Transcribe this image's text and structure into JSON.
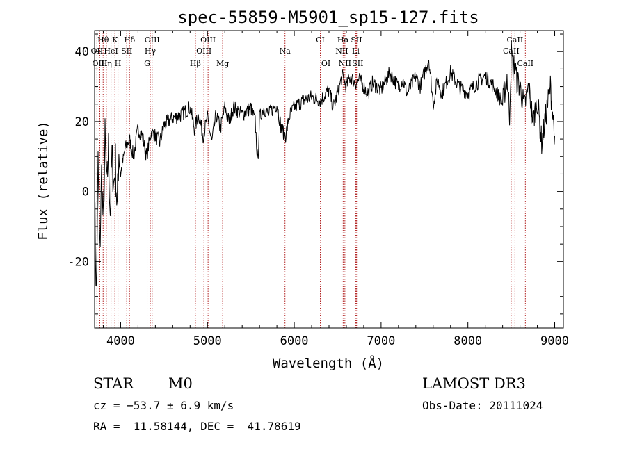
{
  "chart_data": {
    "type": "line",
    "title": "spec-55859-M5901_sp15-127.fits",
    "xlabel": "Wavelength (Å)",
    "ylabel": "Flux (relative)",
    "xlim": [
      3700,
      9100
    ],
    "ylim": [
      -39,
      46
    ],
    "x_ticks": [
      4000,
      5000,
      6000,
      7000,
      8000,
      9000
    ],
    "y_ticks": [
      -20,
      0,
      20,
      40
    ],
    "grid": false,
    "series": [
      {
        "x": [
          3700,
          3720,
          3740,
          3760,
          3780,
          3800,
          3820,
          3840,
          3860,
          3880,
          3900,
          3920,
          3940,
          3960,
          3980,
          4000,
          4050,
          4100,
          4150,
          4200,
          4250,
          4300,
          4350,
          4400,
          4450,
          4500,
          4600,
          4700,
          4800,
          4850,
          4900,
          4950,
          5000,
          5050,
          5100,
          5150,
          5200,
          5250,
          5300,
          5400,
          5500,
          5550,
          5580,
          5600,
          5650,
          5700,
          5800,
          5850,
          5900,
          5950,
          6000,
          6100,
          6200,
          6300,
          6400,
          6450,
          6500,
          6550,
          6600,
          6650,
          6700,
          6750,
          6800,
          6850,
          6900,
          7000,
          7100,
          7200,
          7250,
          7300,
          7400,
          7450,
          7500,
          7550,
          7600,
          7650,
          7700,
          7800,
          7900,
          8000,
          8100,
          8200,
          8300,
          8400,
          8450,
          8480,
          8500,
          8520,
          8540,
          8560,
          8600,
          8650,
          8700,
          8750,
          8800,
          8850,
          8900,
          8950,
          9000
        ],
        "y": [
          -2,
          -30,
          8,
          -18,
          5,
          -10,
          15,
          0,
          12,
          -6,
          10,
          2,
          8,
          -5,
          12,
          5,
          12,
          15,
          10,
          18,
          16,
          10,
          17,
          16,
          14,
          19,
          21,
          22,
          24,
          18,
          22,
          16,
          21,
          14,
          22,
          18,
          24,
          20,
          24,
          22,
          24,
          20,
          8,
          21,
          24,
          22,
          25,
          18,
          16,
          22,
          24,
          26,
          27,
          26,
          29,
          24,
          28,
          33,
          30,
          33,
          31,
          32,
          30,
          28,
          31,
          29,
          34,
          30,
          32,
          28,
          33,
          30,
          34,
          38,
          25,
          32,
          28,
          34,
          30,
          28,
          31,
          33,
          30,
          25,
          33,
          22,
          40,
          35,
          37,
          32,
          30,
          24,
          30,
          20,
          26,
          14,
          22,
          30,
          16
        ]
      }
    ],
    "lines": [
      {
        "label": "Hθ",
        "x": 3798,
        "row": 0
      },
      {
        "label": "OII",
        "x": 3727,
        "row": 1
      },
      {
        "label": "OIII",
        "x": 3760,
        "row": 2
      },
      {
        "label": "Hη",
        "x": 3835,
        "row": 2
      },
      {
        "label": "HeI",
        "x": 3889,
        "row": 1
      },
      {
        "label": "K",
        "x": 3934,
        "row": 0
      },
      {
        "label": "H",
        "x": 3969,
        "row": 2
      },
      {
        "label": "SII",
        "x": 4070,
        "row": 1
      },
      {
        "label": "Hδ",
        "x": 4102,
        "row": 0
      },
      {
        "label": "OIII",
        "x": 4363,
        "row": 0
      },
      {
        "label": "Hγ",
        "x": 4341,
        "row": 1
      },
      {
        "label": "G",
        "x": 4305,
        "row": 2
      },
      {
        "label": "Hβ",
        "x": 4861,
        "row": 2
      },
      {
        "label": "OIII",
        "x": 5007,
        "row": 0
      },
      {
        "label": "OIII",
        "x": 4959,
        "row": 1
      },
      {
        "label": "Mg",
        "x": 5175,
        "row": 2
      },
      {
        "label": "Na",
        "x": 5893,
        "row": 1
      },
      {
        "label": "CI",
        "x": 6300,
        "row": 0
      },
      {
        "label": "OI",
        "x": 6364,
        "row": 2
      },
      {
        "label": "Hα",
        "x": 6563,
        "row": 0
      },
      {
        "label": "NII",
        "x": 6548,
        "row": 1
      },
      {
        "label": "NII",
        "x": 6583,
        "row": 2
      },
      {
        "label": "SII",
        "x": 6716,
        "row": 0
      },
      {
        "label": "Li",
        "x": 6708,
        "row": 1
      },
      {
        "label": "SII",
        "x": 6731,
        "row": 2
      },
      {
        "label": "CaII",
        "x": 8542,
        "row": 0
      },
      {
        "label": "CaII",
        "x": 8498,
        "row": 1
      },
      {
        "label": "CaII",
        "x": 8662,
        "row": 2
      }
    ]
  },
  "info": {
    "class": "STAR",
    "subclass": "M0",
    "survey": "LAMOST DR3",
    "redshift": "cz = −53.7 ± 6.9 km/s",
    "obs_date": "Obs-Date: 20111024",
    "coords": "RA =  11.58144, DEC =  41.78619"
  }
}
